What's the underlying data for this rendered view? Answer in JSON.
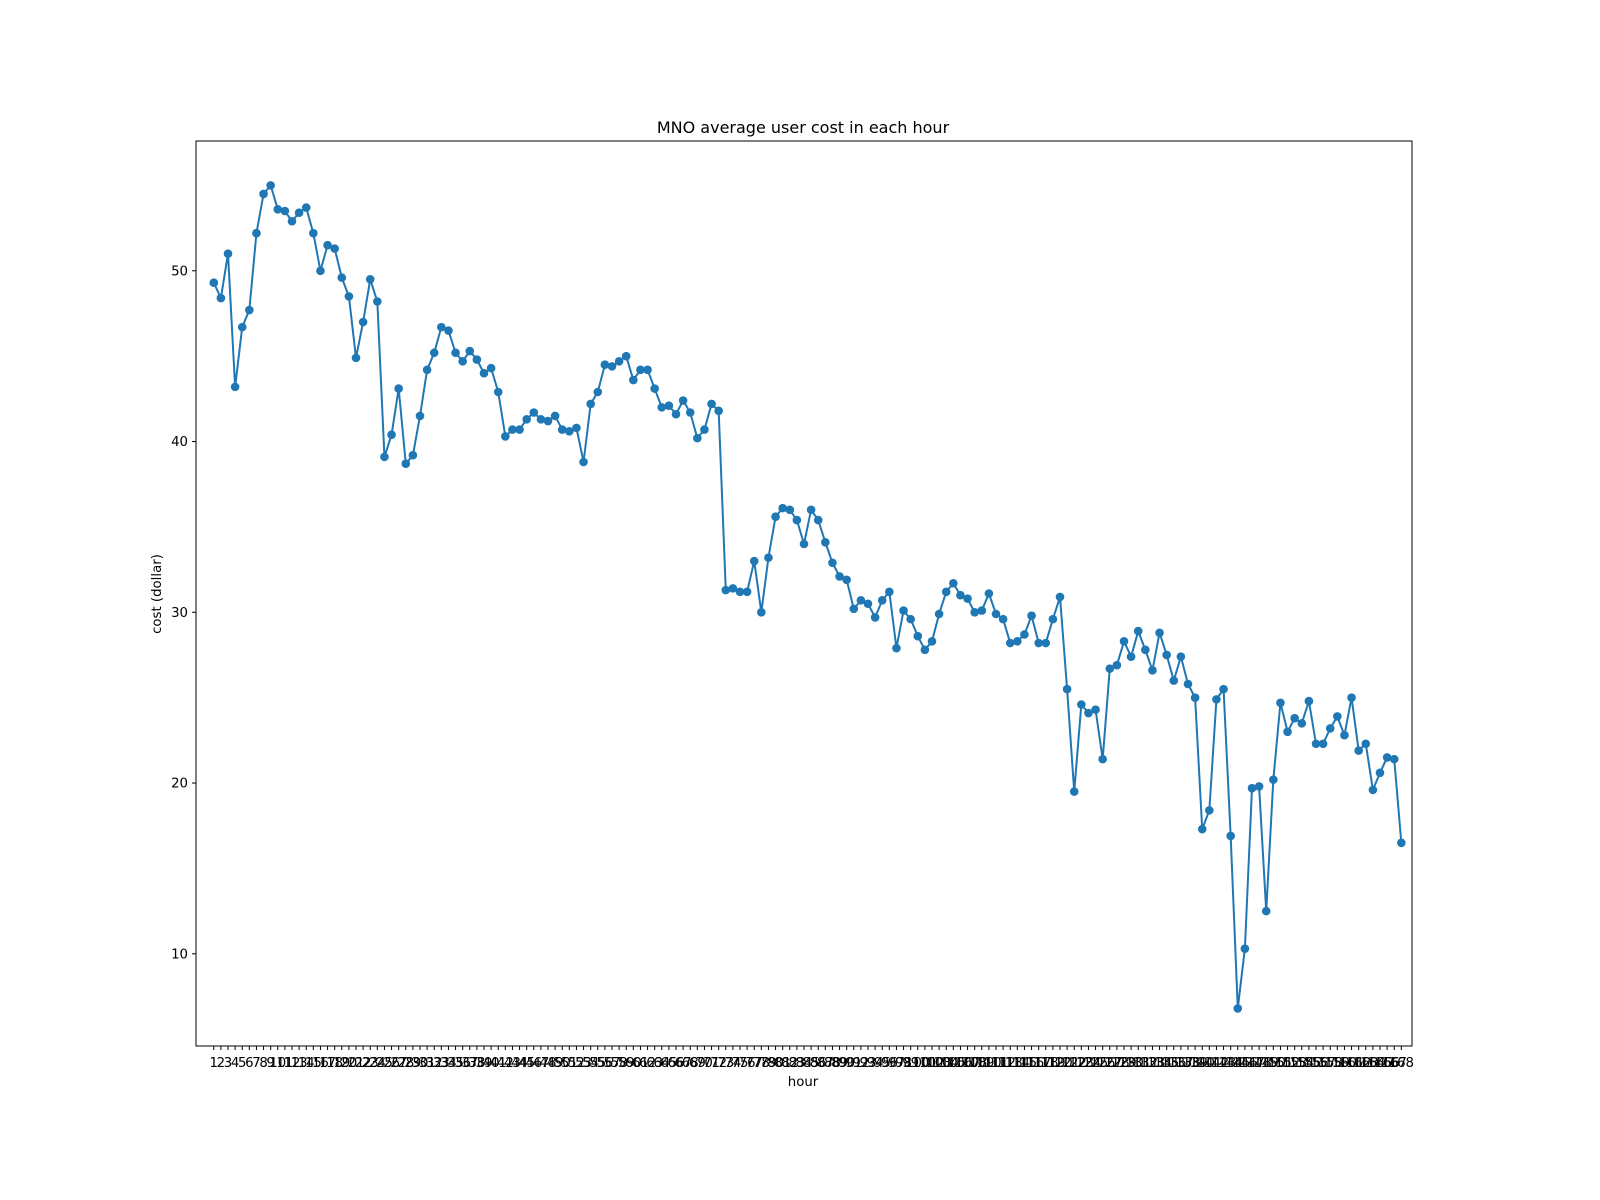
{
  "chart_data": {
    "type": "line",
    "title": "MNO average user cost in each hour",
    "xlabel": "hour",
    "ylabel": "cost (dollar)",
    "yticks": [
      10,
      20,
      30,
      40,
      50
    ],
    "ylim": [
      4.6,
      57.6
    ],
    "xlim": [
      -1.5,
      169.5
    ],
    "grid": false,
    "line_color": "#1f77b4",
    "marker": "circle",
    "x": [
      1,
      2,
      3,
      4,
      5,
      6,
      7,
      8,
      9,
      10,
      11,
      12,
      13,
      14,
      15,
      16,
      17,
      18,
      19,
      20,
      21,
      22,
      23,
      24,
      25,
      26,
      27,
      28,
      29,
      30,
      31,
      32,
      33,
      34,
      35,
      36,
      37,
      38,
      39,
      40,
      41,
      42,
      43,
      44,
      45,
      46,
      47,
      48,
      49,
      50,
      51,
      52,
      53,
      54,
      55,
      56,
      57,
      58,
      59,
      60,
      61,
      62,
      63,
      64,
      65,
      66,
      67,
      68,
      69,
      70,
      71,
      72,
      73,
      74,
      75,
      76,
      77,
      78,
      79,
      80,
      81,
      82,
      83,
      84,
      85,
      86,
      87,
      88,
      89,
      90,
      91,
      92,
      93,
      94,
      95,
      96,
      97,
      98,
      99,
      100,
      101,
      102,
      103,
      104,
      105,
      106,
      107,
      108,
      109,
      110,
      111,
      112,
      113,
      114,
      115,
      116,
      117,
      118,
      119,
      120,
      121,
      122,
      123,
      124,
      125,
      126,
      127,
      128,
      129,
      130,
      131,
      132,
      133,
      134,
      135,
      136,
      137,
      138,
      139,
      140,
      141,
      142,
      143,
      144,
      145,
      146,
      147,
      148,
      149,
      150,
      151,
      152,
      153,
      154,
      155,
      156,
      157,
      158,
      159,
      160,
      161,
      162,
      163,
      164,
      165,
      166,
      167,
      168
    ],
    "series": [
      {
        "values": [
          49.3,
          48.4,
          51.0,
          43.2,
          46.7,
          47.7,
          52.2,
          54.5,
          55.0,
          53.6,
          53.5,
          52.9,
          53.4,
          53.7,
          52.2,
          50.0,
          51.5,
          51.3,
          49.6,
          48.5,
          44.9,
          47.0,
          49.5,
          48.2,
          39.1,
          40.4,
          43.1,
          38.7,
          39.2,
          41.5,
          44.2,
          45.2,
          46.7,
          46.5,
          45.2,
          44.7,
          45.3,
          44.8,
          44.0,
          44.3,
          42.9,
          40.3,
          40.7,
          40.7,
          41.3,
          41.7,
          41.3,
          41.2,
          41.5,
          40.7,
          40.6,
          40.8,
          38.8,
          42.2,
          42.9,
          44.5,
          44.4,
          44.7,
          45.0,
          43.6,
          44.2,
          44.2,
          43.1,
          42.0,
          42.1,
          41.6,
          42.4,
          41.7,
          40.2,
          40.7,
          42.2,
          41.8,
          31.3,
          31.4,
          31.2,
          31.2,
          33.0,
          30.0,
          33.2,
          35.6,
          36.1,
          36.0,
          35.4,
          34.0,
          36.0,
          35.4,
          34.1,
          32.9,
          32.1,
          31.9,
          30.2,
          30.7,
          30.5,
          29.7,
          30.7,
          31.2,
          27.9,
          30.1,
          29.6,
          28.6,
          27.8,
          28.3,
          29.9,
          31.2,
          31.7,
          31.0,
          30.8,
          30.0,
          30.1,
          31.1,
          29.9,
          29.6,
          28.2,
          28.3,
          28.7,
          29.8,
          28.2,
          28.2,
          29.6,
          30.9,
          25.5,
          19.5,
          24.6,
          24.1,
          24.3,
          21.4,
          26.7,
          26.9,
          28.3,
          27.4,
          28.9,
          27.8,
          26.6,
          28.8,
          27.5,
          26.0,
          27.4,
          25.8,
          25.0,
          17.3,
          18.4,
          24.9,
          25.5,
          16.9,
          6.8,
          10.3,
          19.7,
          19.8,
          12.5,
          20.2,
          24.7,
          23.0,
          23.8,
          23.5,
          24.8,
          22.3,
          22.3,
          23.2,
          23.9,
          22.8,
          25.0,
          21.9,
          22.3,
          19.6,
          20.6,
          21.5,
          21.4,
          16.5
        ]
      }
    ]
  }
}
